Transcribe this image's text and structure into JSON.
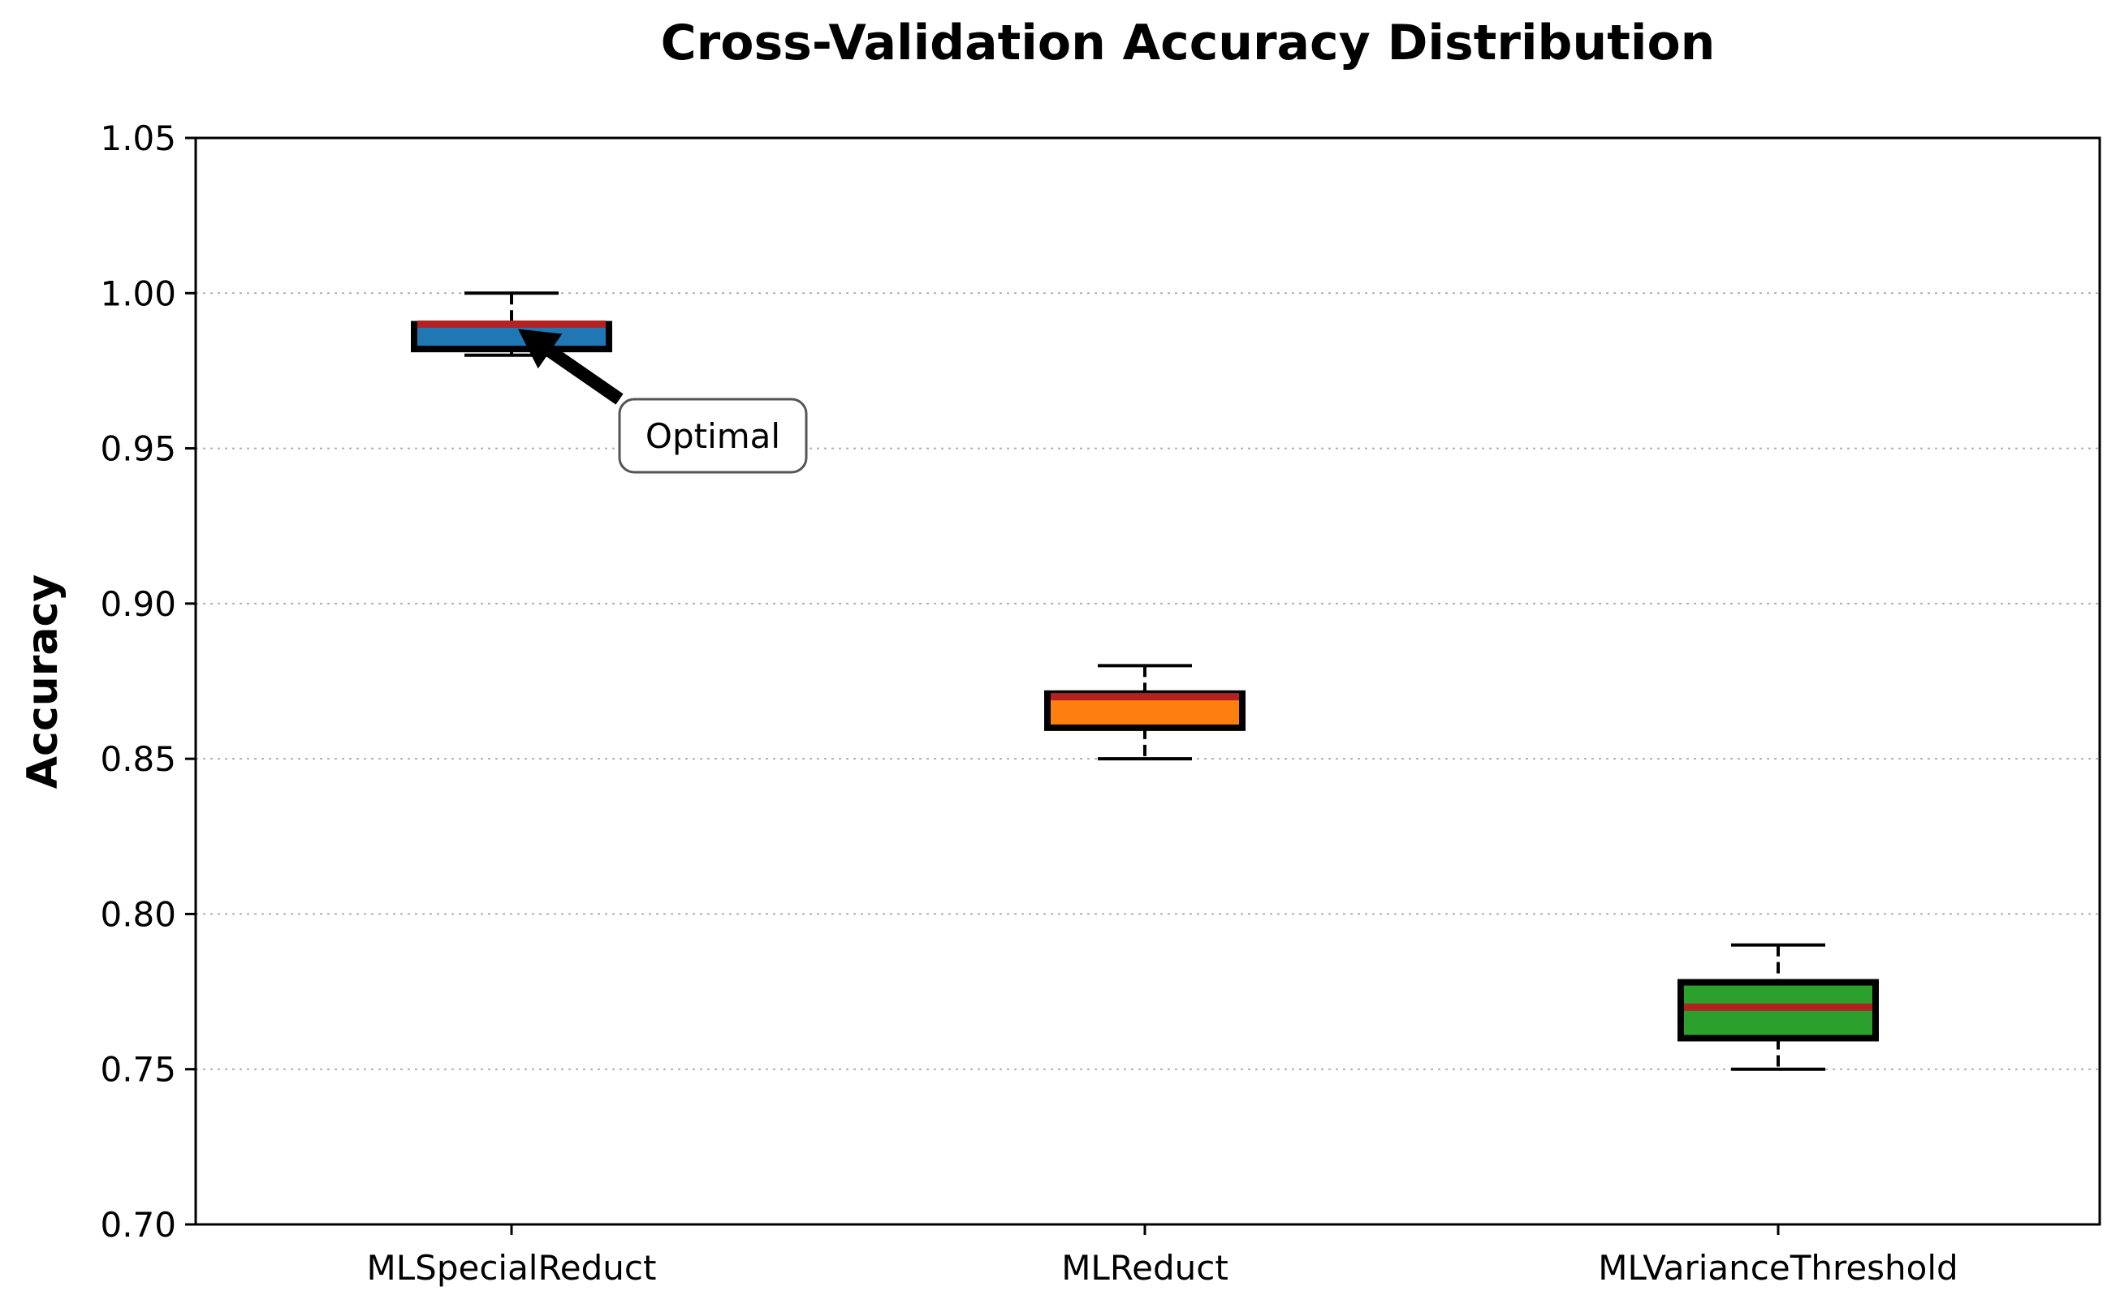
{
  "chart_data": {
    "type": "box",
    "title": "Cross-Validation Accuracy Distribution",
    "xlabel": "",
    "ylabel": "Accuracy",
    "ylim": [
      0.7,
      1.05
    ],
    "yticks": [
      "0.70",
      "0.75",
      "0.80",
      "0.85",
      "0.90",
      "0.95",
      "1.00",
      "1.05"
    ],
    "ytick_values": [
      0.7,
      0.75,
      0.8,
      0.85,
      0.9,
      0.95,
      1.0,
      1.05
    ],
    "grid": "horizontal dotted",
    "categories": [
      "MLSpecialReduct",
      "MLReduct",
      "MLVarianceThreshold"
    ],
    "boxes": [
      {
        "name": "MLSpecialReduct",
        "whisker_low": 0.98,
        "q1": 0.982,
        "median": 0.99,
        "q3": 0.99,
        "whisker_high": 1.0,
        "color": "#1f77b4"
      },
      {
        "name": "MLReduct",
        "whisker_low": 0.85,
        "q1": 0.86,
        "median": 0.87,
        "q3": 0.871,
        "whisker_high": 0.88,
        "color": "#ff7f0e"
      },
      {
        "name": "MLVarianceThreshold",
        "whisker_low": 0.75,
        "q1": 0.76,
        "median": 0.77,
        "q3": 0.778,
        "whisker_high": 0.79,
        "color": "#2ca02c"
      }
    ],
    "median_color": "#b22222",
    "annotation": {
      "text": "Optimal",
      "target_category": "MLSpecialReduct",
      "target_value": 0.99
    }
  }
}
